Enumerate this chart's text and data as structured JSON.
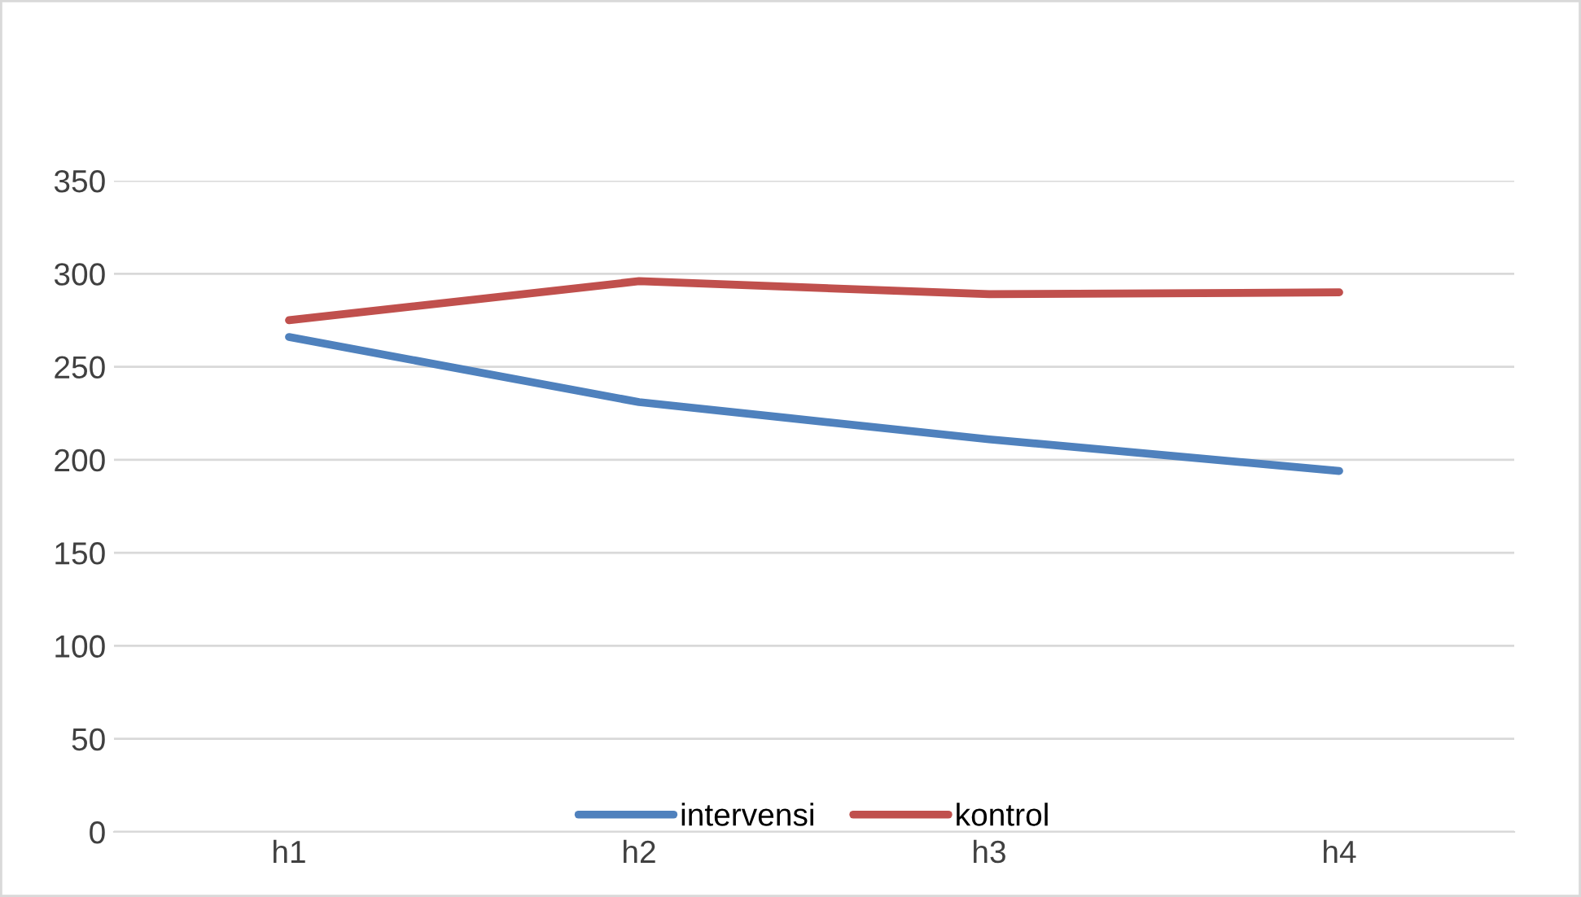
{
  "chart_data": {
    "type": "line",
    "categories": [
      "h1",
      "h2",
      "h3",
      "h4"
    ],
    "series": [
      {
        "name": "intervensi",
        "color": "#4f81bd",
        "values": [
          266,
          231,
          211,
          194
        ]
      },
      {
        "name": "kontrol",
        "color": "#c0504d",
        "values": [
          275,
          296,
          289,
          290
        ]
      }
    ],
    "ylim": [
      0,
      350
    ],
    "yticks": [
      0,
      50,
      100,
      150,
      200,
      250,
      300,
      350
    ],
    "grid": "y",
    "legend": "bottom",
    "marker": "none",
    "line_style": "solid"
  }
}
